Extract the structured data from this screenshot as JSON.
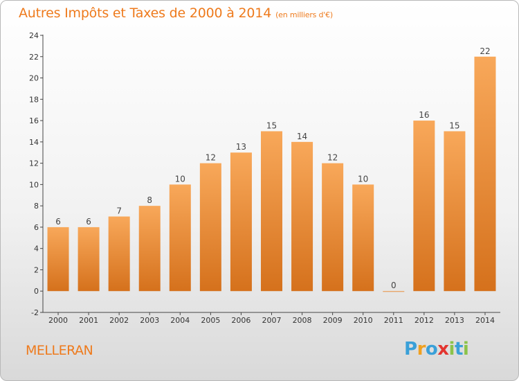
{
  "title": "Autres Impôts et Taxes de 2000 à 2014",
  "unit_note": "(en milliers d'€)",
  "commune": "MELLERAN",
  "brand": {
    "letters": [
      "P",
      "r",
      "o",
      "x",
      "i",
      "t",
      "i"
    ],
    "colors": [
      "#3aa0d8",
      "#f0a020",
      "#3aa0d8",
      "#e3342f",
      "#8bc34a",
      "#3aa0d8",
      "#8bc34a"
    ]
  },
  "colors": {
    "bar_top": "#f8a85a",
    "bar_bottom": "#d5711c",
    "accent": "#ee7a1c"
  },
  "chart_data": {
    "type": "bar",
    "title": "Autres Impôts et Taxes de 2000 à 2014",
    "subtitle": "(en milliers d'€)",
    "categories": [
      "2000",
      "2001",
      "2002",
      "2003",
      "2004",
      "2005",
      "2006",
      "2007",
      "2008",
      "2009",
      "2010",
      "2011",
      "2012",
      "2013",
      "2014"
    ],
    "values": [
      6,
      6,
      7,
      8,
      10,
      12,
      13,
      15,
      14,
      12,
      10,
      0,
      16,
      15,
      22
    ],
    "ylim": [
      -2,
      24
    ],
    "yticks": [
      -2,
      0,
      2,
      4,
      6,
      8,
      10,
      12,
      14,
      16,
      18,
      20,
      22,
      24
    ],
    "grid": false,
    "data_labels": true
  }
}
